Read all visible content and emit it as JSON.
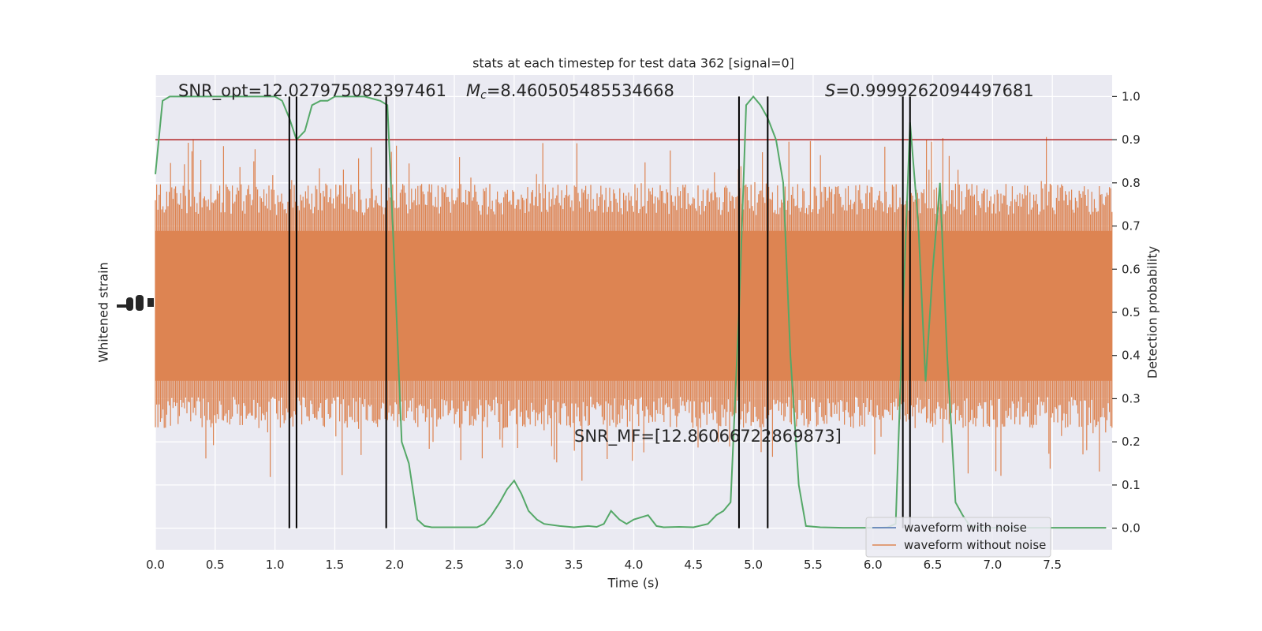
{
  "chart_data": {
    "type": "line",
    "title": "stats at each timestep for test data 362 [signal=0]",
    "xlabel": "Time (s)",
    "ylabel_left": "Whitened strain",
    "ylabel_right": "Detection probability",
    "xlim": [
      0.0,
      8.0
    ],
    "ylim_right": [
      -0.05,
      1.05
    ],
    "x_ticks": [
      "0.0",
      "0.5",
      "1.0",
      "1.5",
      "2.0",
      "2.5",
      "3.0",
      "3.5",
      "4.0",
      "4.5",
      "5.0",
      "5.5",
      "6.0",
      "6.5",
      "7.0",
      "7.5"
    ],
    "x_tick_values": [
      0.0,
      0.5,
      1.0,
      1.5,
      2.0,
      2.5,
      3.0,
      3.5,
      4.0,
      4.5,
      5.0,
      5.5,
      6.0,
      6.5,
      7.0,
      7.5
    ],
    "y_ticks_right": [
      "0.0",
      "0.1",
      "0.2",
      "0.3",
      "0.4",
      "0.5",
      "0.6",
      "0.7",
      "0.8",
      "0.9",
      "1.0"
    ],
    "y_tick_values_right": [
      0.0,
      0.1,
      0.2,
      0.3,
      0.4,
      0.5,
      0.6,
      0.7,
      0.8,
      0.9,
      1.0
    ],
    "annotations": {
      "snr_opt": "SNR_opt=12.027975082397461",
      "mc_symbol": "M",
      "mc_sub": "c",
      "mc_value": "=8.460505485534668",
      "s_symbol": "S",
      "s_value": "=0.9999262094497681",
      "snr_mf": "SNR_MF=[12.86066722869873]"
    },
    "threshold": 0.9,
    "vertical_lines": [
      1.12,
      1.18,
      1.93,
      4.88,
      5.12,
      6.25,
      6.31
    ],
    "grid": true,
    "legend_position": "lower right",
    "series": [
      {
        "name": "waveform with noise",
        "color": "#4c72b0",
        "values": []
      },
      {
        "name": "waveform without noise",
        "color": "#dd8452",
        "strain_envelope_upper_prob": 0.78,
        "strain_envelope_lower_prob": 0.25
      },
      {
        "color": "#55a868",
        "x": [
          0.0,
          0.06,
          0.12,
          0.25,
          0.5,
          0.75,
          1.0,
          1.06,
          1.12,
          1.18,
          1.25,
          1.31,
          1.38,
          1.44,
          1.5,
          1.62,
          1.75,
          1.88,
          1.94,
          2.0,
          2.06,
          2.12,
          2.19,
          2.25,
          2.31,
          2.44,
          2.56,
          2.69,
          2.75,
          2.81,
          2.88,
          2.94,
          3.0,
          3.06,
          3.12,
          3.19,
          3.25,
          3.38,
          3.5,
          3.62,
          3.69,
          3.75,
          3.81,
          3.88,
          3.94,
          4.0,
          4.12,
          4.19,
          4.25,
          4.38,
          4.5,
          4.62,
          4.69,
          4.75,
          4.81,
          4.88,
          4.94,
          5.0,
          5.06,
          5.12,
          5.19,
          5.25,
          5.31,
          5.38,
          5.44,
          5.56,
          5.75,
          5.94,
          6.06,
          6.12,
          6.19,
          6.25,
          6.31,
          6.38,
          6.44,
          6.5,
          6.56,
          6.62,
          6.69,
          6.75,
          6.81,
          6.88,
          7.0,
          7.25,
          7.5,
          7.75,
          7.95
        ],
        "values": [
          0.82,
          0.99,
          1.0,
          1.0,
          1.0,
          1.0,
          1.0,
          0.99,
          0.95,
          0.9,
          0.92,
          0.98,
          0.99,
          0.99,
          1.0,
          1.0,
          1.0,
          0.99,
          0.98,
          0.6,
          0.2,
          0.15,
          0.02,
          0.005,
          0.002,
          0.002,
          0.002,
          0.002,
          0.01,
          0.03,
          0.06,
          0.09,
          0.11,
          0.08,
          0.04,
          0.02,
          0.01,
          0.005,
          0.002,
          0.005,
          0.003,
          0.01,
          0.04,
          0.02,
          0.01,
          0.02,
          0.03,
          0.005,
          0.002,
          0.003,
          0.002,
          0.01,
          0.03,
          0.04,
          0.06,
          0.5,
          0.98,
          1.0,
          0.98,
          0.95,
          0.9,
          0.8,
          0.4,
          0.1,
          0.005,
          0.002,
          0.001,
          0.001,
          0.001,
          0.002,
          0.01,
          0.5,
          0.94,
          0.7,
          0.34,
          0.6,
          0.8,
          0.4,
          0.06,
          0.03,
          0.005,
          0.002,
          0.001,
          0.001,
          0.001,
          0.001,
          0.001
        ]
      }
    ]
  }
}
